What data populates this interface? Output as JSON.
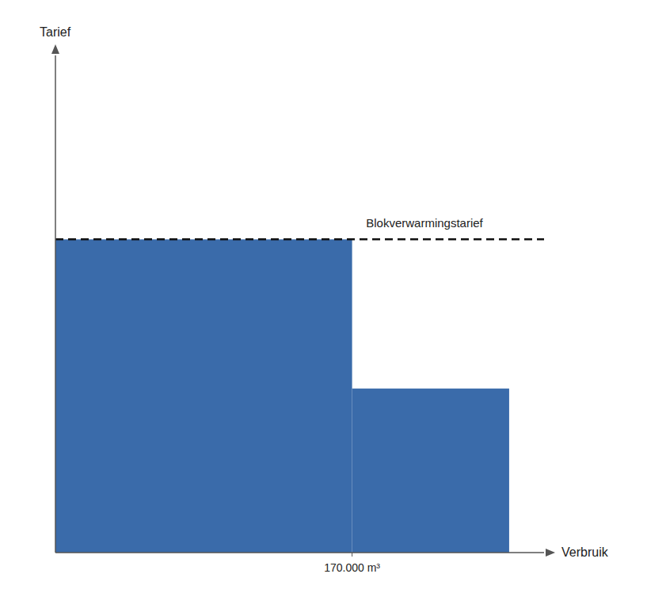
{
  "chart_data": {
    "type": "histogram",
    "xlabel": "Verbruik",
    "ylabel": "Tarief",
    "bins": [
      0,
      170,
      260
    ],
    "values": [
      0.63,
      0.33
    ],
    "color": "#3A6BAA",
    "xlim": [
      0,
      280
    ],
    "ylim": [
      0,
      1.0
    ],
    "xticks": [
      {
        "value": 170,
        "label": "170.000 m³"
      }
    ],
    "yticks": [],
    "tick_labels": "x",
    "grid": false,
    "reference_line": {
      "y": 0.63,
      "color": "#111111",
      "line_style": "dashed"
    },
    "annotations": [
      {
        "text": "Blokverwarmingstarief",
        "x": 178,
        "y": 0.655
      }
    ]
  }
}
